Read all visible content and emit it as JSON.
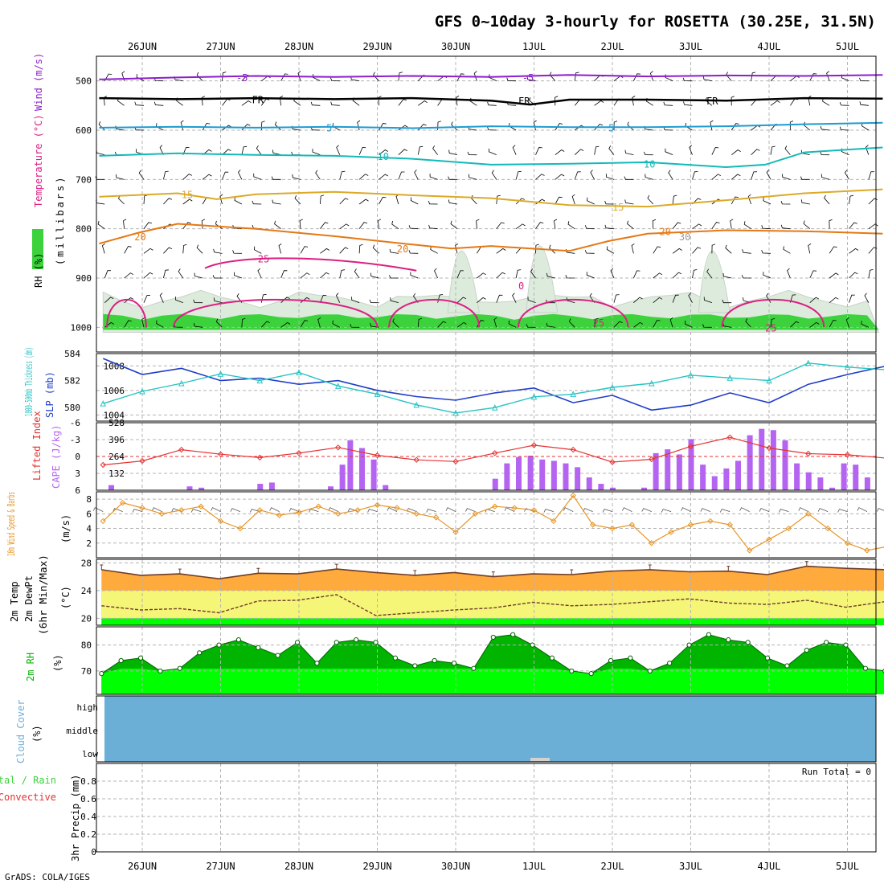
{
  "title": "GFS 0~10day 3-hourly for ROSETTA (30.25E, 31.5N)",
  "credit": "GrADS: COLA/IGES",
  "colors": {
    "rh_fill": "#3cd23c",
    "rh_light": "#dcebdc",
    "temp_500": "#8c1ecc",
    "freezing": "#000000",
    "temp_5": "#1e9bd2",
    "temp_10": "#14b9b9",
    "temp_15": "#dcaa28",
    "temp_20": "#e67814",
    "temp_25": "#dc1e82",
    "slp": "#1e3cc8",
    "thickness": "#28c3c3",
    "cape": "#b464f0",
    "lifted_index": "#e63232",
    "wind10": "#e69628",
    "temp_fill": "#ffaa3c",
    "dewpt_fill": "#f5f578",
    "rh2m_dark": "#00b400",
    "rh2m_light": "#00ff00",
    "cloud": "#6baed6"
  },
  "dates": [
    "26JUN",
    "27JUN",
    "28JUN",
    "29JUN",
    "30JUN",
    "1JUL",
    "2JUL",
    "3JUL",
    "4JUL",
    "5JUL"
  ],
  "chart_data": [
    {
      "type": "line",
      "name": "pressure-level cross-section",
      "ylabel": "(millibars)",
      "legend": [
        "Wind (m/s)",
        "Temperature (°C)",
        "RH (%)"
      ],
      "y_ticks": [
        500,
        600,
        700,
        800,
        900,
        1000
      ],
      "ylim": [
        1050,
        450
      ],
      "x_day_range": [
        0,
        10
      ],
      "contour_labels": [
        "-5",
        "FR",
        "5",
        "10",
        "15",
        "20",
        "-25",
        "25",
        "0",
        "30"
      ],
      "series": [
        {
          "name": "-5",
          "x": [
            0,
            1,
            2,
            3,
            4,
            5,
            6,
            7,
            8,
            9,
            10
          ],
          "values": [
            497,
            493,
            490,
            492,
            490,
            492,
            488,
            491,
            489,
            490,
            488
          ]
        },
        {
          "name": "FR",
          "x": [
            0,
            1,
            2,
            3,
            4,
            5,
            5.5,
            6,
            7,
            8,
            9,
            10
          ],
          "values": [
            535,
            537,
            535,
            537,
            535,
            540,
            548,
            538,
            538,
            540,
            535,
            536
          ]
        },
        {
          "name": "5",
          "x": [
            0,
            1,
            2,
            3,
            4,
            5,
            6,
            7,
            8,
            9,
            10
          ],
          "values": [
            595,
            593,
            595,
            593,
            596,
            592,
            594,
            594,
            592,
            588,
            585
          ]
        },
        {
          "name": "10",
          "x": [
            0,
            1,
            2,
            3,
            4,
            5,
            6,
            7,
            8,
            8.5,
            9,
            10
          ],
          "values": [
            652,
            647,
            650,
            652,
            658,
            670,
            668,
            665,
            675,
            670,
            645,
            635
          ]
        },
        {
          "name": "15",
          "x": [
            0,
            1,
            1.5,
            2,
            3,
            4,
            5,
            6,
            7,
            8,
            9,
            10
          ],
          "values": [
            735,
            728,
            740,
            730,
            725,
            732,
            738,
            752,
            755,
            742,
            728,
            720
          ]
        },
        {
          "name": "20",
          "x": [
            0,
            0.5,
            1,
            2,
            3,
            4,
            4.5,
            5,
            6,
            6.5,
            7,
            8,
            9,
            10
          ],
          "values": [
            830,
            808,
            790,
            800,
            815,
            832,
            840,
            835,
            845,
            825,
            810,
            803,
            805,
            810
          ]
        }
      ]
    },
    {
      "type": "line",
      "name": "SLP and 1000-500mb thickness",
      "legend": [
        "SLP (mb)",
        "1000-500mb Thickness (dm)"
      ],
      "left_ticks": [
        580,
        582,
        584
      ],
      "left_range": [
        579,
        584
      ],
      "right_ticks": [
        1004,
        1006,
        1008
      ],
      "right_range": [
        1003.5,
        1009
      ],
      "series": [
        {
          "name": "SLP (mb)",
          "x": [
            0,
            0.5,
            1,
            1.5,
            2,
            2.5,
            3,
            3.5,
            4,
            4.5,
            5,
            5.5,
            6,
            6.5,
            7,
            7.5,
            8,
            8.5,
            9,
            9.5,
            10
          ],
          "values": [
            1008.6,
            1007.3,
            1007.8,
            1006.8,
            1007.0,
            1006.5,
            1006.8,
            1006.0,
            1005.5,
            1005.2,
            1005.8,
            1006.2,
            1005.0,
            1005.6,
            1004.4,
            1004.8,
            1005.8,
            1005.0,
            1006.5,
            1007.3,
            1008.0
          ]
        },
        {
          "name": "1000-500mb Thickness (dm)",
          "x": [
            0,
            0.5,
            1,
            1.5,
            2,
            2.5,
            3,
            3.5,
            4,
            4.5,
            5,
            5.5,
            6,
            6.5,
            7,
            7.5,
            8,
            8.5,
            9,
            9.5,
            10
          ],
          "values": [
            580.3,
            581.2,
            581.8,
            582.5,
            582.0,
            582.6,
            581.6,
            581.0,
            580.2,
            579.6,
            580.0,
            580.8,
            581.0,
            581.5,
            581.8,
            582.4,
            582.2,
            582.0,
            583.3,
            583.0,
            582.8
          ]
        }
      ]
    },
    {
      "type": "bar",
      "name": "CAPE and Lifted Index",
      "legend": [
        "CAPE (J/kg)",
        "Lifted Index"
      ],
      "left_ticks": [
        132,
        264,
        396,
        528
      ],
      "left_range": [
        0,
        528
      ],
      "right_ticks": [
        "-6",
        "-3",
        "0",
        "3",
        "6"
      ],
      "right_range": [
        6,
        -6
      ],
      "reference_line": 0,
      "series": [
        {
          "name": "CAPE (J/kg)",
          "x": [
            0.1,
            1.1,
            1.25,
            2.0,
            2.15,
            2.9,
            3.05,
            3.15,
            3.3,
            3.45,
            3.6,
            5.0,
            5.15,
            5.3,
            5.45,
            5.6,
            5.75,
            5.9,
            6.05,
            6.2,
            6.35,
            6.5,
            6.9,
            7.05,
            7.2,
            7.35,
            7.5,
            7.65,
            7.8,
            7.95,
            8.1,
            8.25,
            8.4,
            8.55,
            8.7,
            8.85,
            9.0,
            9.15,
            9.3,
            9.45,
            9.6,
            9.75
          ],
          "values": [
            40,
            30,
            20,
            50,
            60,
            30,
            200,
            390,
            330,
            240,
            40,
            90,
            210,
            260,
            270,
            240,
            230,
            210,
            180,
            100,
            50,
            20,
            20,
            290,
            320,
            280,
            400,
            200,
            110,
            170,
            230,
            430,
            480,
            470,
            390,
            210,
            140,
            100,
            20,
            210,
            200,
            100
          ]
        },
        {
          "name": "Lifted Index",
          "x": [
            0,
            0.5,
            1,
            1.5,
            2,
            2.5,
            3,
            3.5,
            4,
            4.5,
            5,
            5.5,
            6,
            6.5,
            7,
            7.5,
            8,
            8.5,
            9,
            9.5,
            10
          ],
          "values": [
            1.5,
            0.8,
            -1.2,
            -0.4,
            0.2,
            -0.6,
            -1.6,
            -0.2,
            0.6,
            0.9,
            -0.6,
            -2.0,
            -1.2,
            1.0,
            0.5,
            -1.8,
            -3.4,
            -1.5,
            -0.5,
            -0.3,
            0.3
          ]
        }
      ]
    },
    {
      "type": "line",
      "name": "10m Wind",
      "ylabel": "(m/s)",
      "legend": [
        "10m Wind Speed & Barbs"
      ],
      "y_ticks": [
        2,
        4,
        6,
        8
      ],
      "ylim": [
        0,
        9
      ],
      "x": [
        0,
        0.25,
        0.5,
        0.75,
        1,
        1.25,
        1.5,
        1.75,
        2,
        2.25,
        2.5,
        2.75,
        3,
        3.25,
        3.5,
        3.75,
        4,
        4.25,
        4.5,
        4.75,
        5,
        5.25,
        5.5,
        5.75,
        6,
        6.25,
        6.5,
        6.75,
        7,
        7.25,
        7.5,
        7.75,
        8,
        8.25,
        8.5,
        8.75,
        9,
        9.25,
        9.5,
        9.75,
        10
      ],
      "values": [
        5.0,
        7.5,
        6.8,
        6.0,
        6.5,
        7.0,
        5.0,
        4.0,
        6.5,
        5.8,
        6.2,
        7.0,
        6.0,
        6.5,
        7.2,
        6.8,
        6.0,
        5.5,
        3.5,
        6.0,
        7.0,
        6.8,
        6.5,
        5.0,
        8.5,
        4.5,
        4.0,
        4.5,
        2.0,
        3.5,
        4.5,
        5.0,
        4.5,
        1.0,
        2.5,
        4.0,
        6.0,
        4.0,
        2.0,
        1.0,
        1.5
      ]
    },
    {
      "type": "area",
      "name": "2m Temp and DewPt",
      "ylabel": "(°C)",
      "legend": [
        "2m Temp",
        "2m DewPt",
        "(6hr Min/Max)"
      ],
      "y_ticks": [
        20,
        24,
        28
      ],
      "ylim": [
        19,
        28.5
      ],
      "series": [
        {
          "name": "2m Temp",
          "x": [
            0,
            0.5,
            1,
            1.5,
            2,
            2.5,
            3,
            3.5,
            4,
            4.5,
            5,
            5.5,
            6,
            6.5,
            7,
            7.5,
            8,
            8.5,
            9,
            9.5,
            10
          ],
          "values": [
            27.0,
            26.2,
            26.4,
            25.7,
            26.5,
            26.4,
            27.1,
            26.6,
            26.2,
            26.6,
            26.0,
            26.4,
            26.3,
            26.8,
            27.0,
            26.7,
            26.8,
            26.3,
            27.5,
            27.2,
            27.0
          ]
        },
        {
          "name": "2m DewPt",
          "x": [
            0,
            0.5,
            1,
            1.5,
            2,
            2.5,
            3,
            3.5,
            4,
            4.5,
            5,
            5.5,
            6,
            6.5,
            7,
            7.5,
            8,
            8.5,
            9,
            9.5,
            10
          ],
          "values": [
            21.8,
            21.2,
            21.4,
            20.8,
            22.5,
            22.6,
            23.4,
            20.4,
            20.8,
            21.2,
            21.5,
            22.3,
            21.8,
            22.0,
            22.4,
            22.8,
            22.2,
            22.0,
            22.6,
            21.6,
            22.4
          ]
        }
      ]
    },
    {
      "type": "area",
      "name": "2m RH",
      "ylabel": "(%)",
      "legend": [
        "2m RH"
      ],
      "y_ticks": [
        70,
        80
      ],
      "ylim": [
        61,
        87
      ],
      "x": [
        0,
        0.25,
        0.5,
        0.75,
        1,
        1.25,
        1.5,
        1.75,
        2,
        2.25,
        2.5,
        2.75,
        3,
        3.25,
        3.5,
        3.75,
        4,
        4.25,
        4.5,
        4.75,
        5,
        5.25,
        5.5,
        5.75,
        6,
        6.25,
        6.5,
        6.75,
        7,
        7.25,
        7.5,
        7.75,
        8,
        8.25,
        8.5,
        8.75,
        9,
        9.25,
        9.5,
        9.75,
        10
      ],
      "values": [
        69,
        74,
        75,
        70,
        71,
        77,
        80,
        82,
        79,
        76,
        81,
        73,
        81,
        82,
        81,
        75,
        72,
        74,
        73,
        71,
        83,
        84,
        80,
        75,
        70,
        69,
        74,
        75,
        70,
        73,
        80,
        84,
        82,
        81,
        75,
        72,
        78,
        81,
        80,
        71,
        70
      ]
    },
    {
      "type": "area",
      "name": "Cloud Cover",
      "ylabel": "(%)",
      "legend": [
        "Cloud Cover"
      ],
      "y_ticks": [
        "high",
        "middle",
        "low"
      ]
    },
    {
      "type": "bar",
      "name": "3hr Precip",
      "ylabel": "3hr Precip (mm)",
      "legend": [
        "Total / Rain",
        "Convective"
      ],
      "y_ticks": [
        0,
        0.2,
        0.4,
        0.6,
        0.8
      ],
      "ylim": [
        0,
        1.0
      ],
      "annotation": "Run Total = 0",
      "values": []
    }
  ]
}
